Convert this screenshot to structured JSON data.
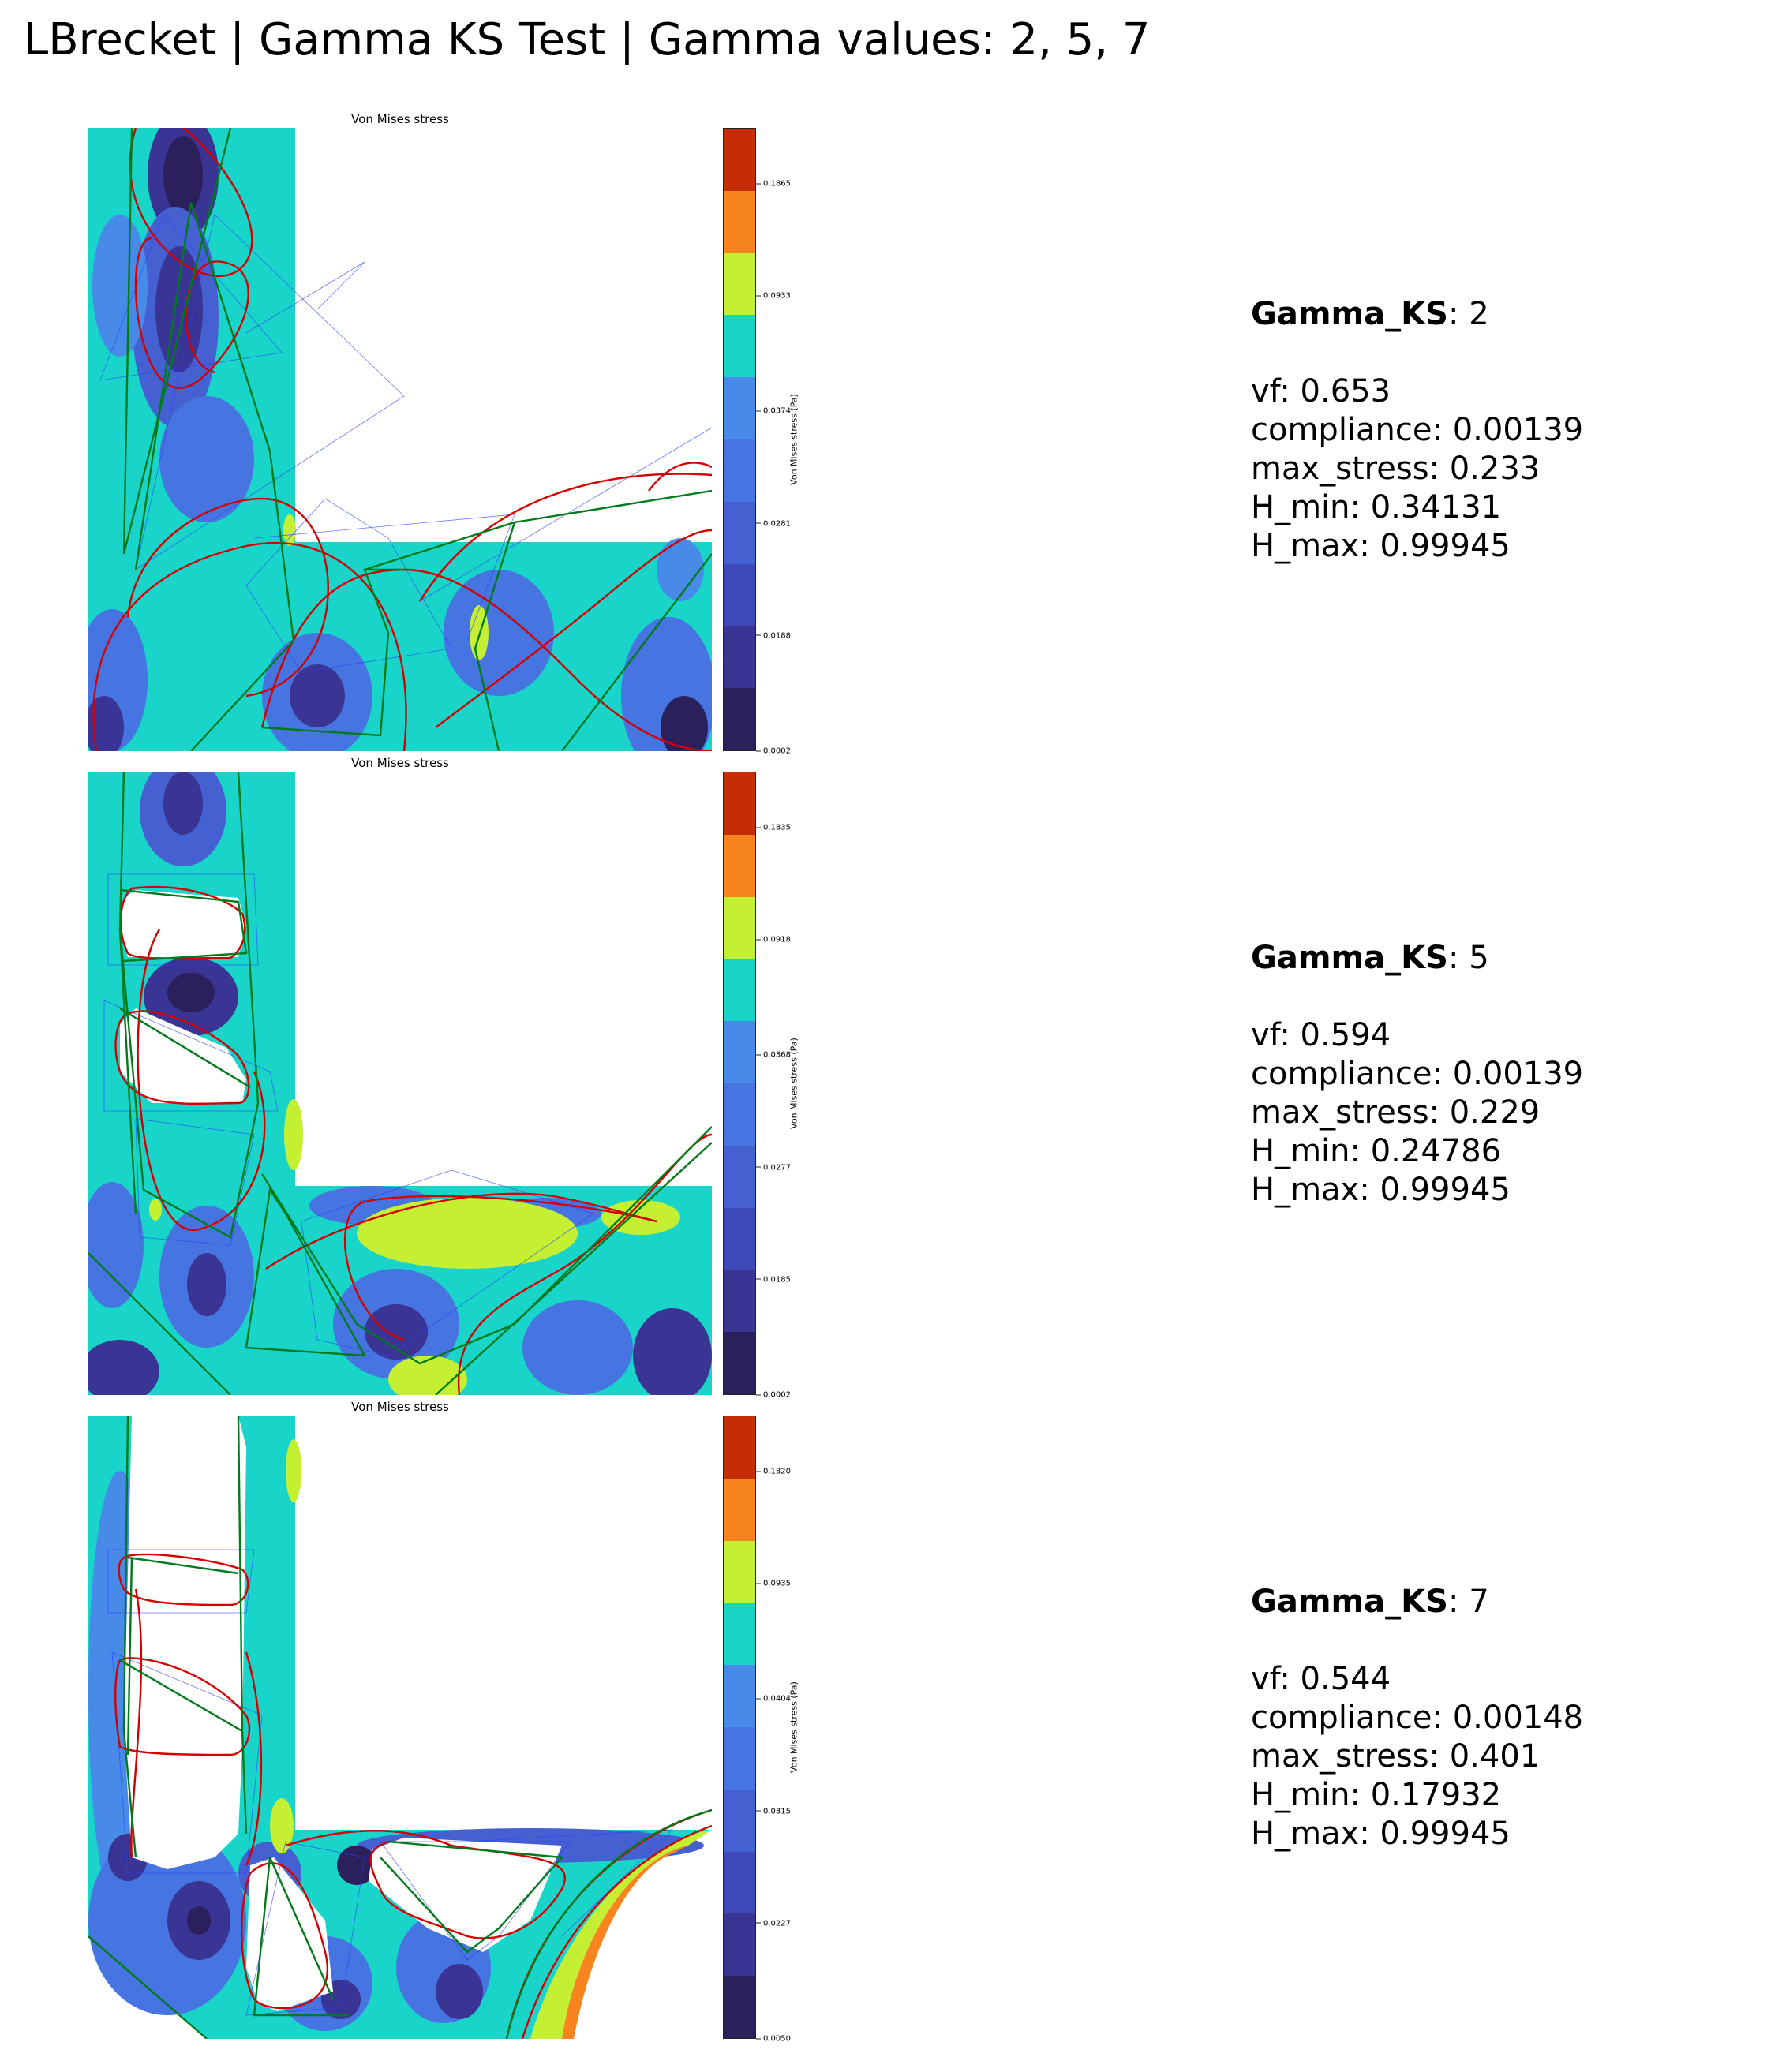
{
  "title": "LBrecket | Gamma KS Test | Gamma values: 2, 5, 7",
  "colormap": [
    "#2b1f5c",
    "#3a3594",
    "#4049b8",
    "#4560d0",
    "#4674e0",
    "#478ae8",
    "#18d4c9",
    "#c4ef33",
    "#f8841f",
    "#c42d06"
  ],
  "chart_data": [
    {
      "type": "heatmap",
      "title": "Von Mises stress",
      "colorbar_label": "Von Mises stress (Pa)",
      "colorbar_ticks": [
        "0.1865",
        "0.0933",
        "0.0374",
        "0.0281",
        "0.0188",
        "0.0002"
      ],
      "gamma_label": "Gamma_KS",
      "gamma_value": "2",
      "stats": [
        {
          "label": "vf",
          "value": "0.653"
        },
        {
          "label": "compliance",
          "value": "0.00139"
        },
        {
          "label": "max_stress",
          "value": "0.233"
        },
        {
          "label": "H_min",
          "value": "0.34131"
        },
        {
          "label": "H_max",
          "value": "0.99945"
        }
      ]
    },
    {
      "type": "heatmap",
      "title": "Von Mises stress",
      "colorbar_label": "Von Mises stress (Pa)",
      "colorbar_ticks": [
        "0.1835",
        "0.0918",
        "0.0368",
        "0.0277",
        "0.0185",
        "0.0002"
      ],
      "gamma_label": "Gamma_KS",
      "gamma_value": "5",
      "stats": [
        {
          "label": "vf",
          "value": "0.594"
        },
        {
          "label": "compliance",
          "value": "0.00139"
        },
        {
          "label": "max_stress",
          "value": "0.229"
        },
        {
          "label": "H_min",
          "value": "0.24786"
        },
        {
          "label": "H_max",
          "value": "0.99945"
        }
      ]
    },
    {
      "type": "heatmap",
      "title": "Von Mises stress",
      "colorbar_label": "Von Mises stress (Pa)",
      "colorbar_ticks": [
        "0.1820",
        "0.0935",
        "0.0404",
        "0.0315",
        "0.0227",
        "0.0050"
      ],
      "gamma_label": "Gamma_KS",
      "gamma_value": "7",
      "stats": [
        {
          "label": "vf",
          "value": "0.544"
        },
        {
          "label": "compliance",
          "value": "0.00148"
        },
        {
          "label": "max_stress",
          "value": "0.401"
        },
        {
          "label": "H_min",
          "value": "0.17932"
        },
        {
          "label": "H_max",
          "value": "0.99945"
        }
      ]
    }
  ]
}
